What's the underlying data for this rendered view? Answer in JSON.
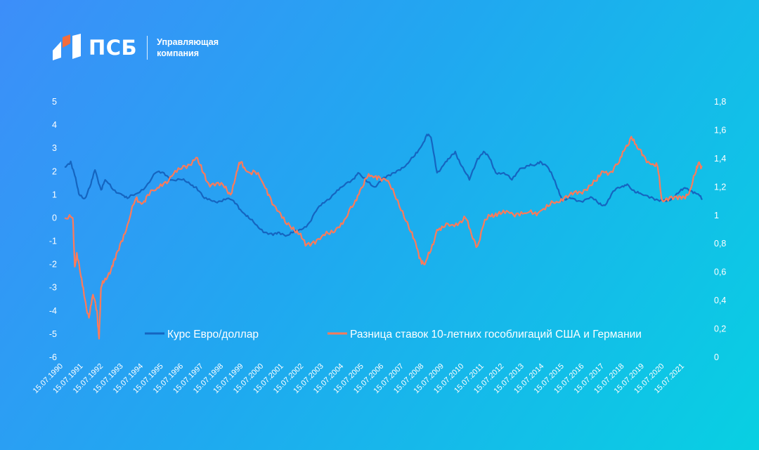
{
  "header": {
    "brand": "ПСБ",
    "caption_line1": "Управляющая",
    "caption_line2": "компания"
  },
  "chart_data": {
    "type": "line",
    "title": "",
    "xlabel": "",
    "ylabel_left": "",
    "ylabel_right": "",
    "x_tick_labels": [
      "15.07.1990",
      "15.07.1991",
      "15.07.1992",
      "15.07.1993",
      "15.07.1994",
      "15.07.1995",
      "15.07.1996",
      "15.07.1997",
      "15.07.1998",
      "15.07.1999",
      "15.07.2000",
      "15.07.2001",
      "15.07.2002",
      "15.07.2003",
      "15.07.2004",
      "15.07.2005",
      "15.07.2006",
      "15.07.2007",
      "15.07.2008",
      "15.07.2009",
      "15.07.2010",
      "15.07.2011",
      "15.07.2012",
      "15.07.2013",
      "15.07.2014",
      "15.07.2015",
      "15.07.2016",
      "15.07.2017",
      "15.07.2018",
      "15.07.2019",
      "15.07.2020",
      "15.07.2021"
    ],
    "y_left": {
      "min": -6,
      "max": 5,
      "ticks": [
        "5",
        "4",
        "3",
        "2",
        "1",
        "0",
        "-1",
        "-2",
        "-3",
        "-4",
        "-5",
        "-6"
      ]
    },
    "y_right": {
      "min": 0,
      "max": 1.8,
      "ticks": [
        "1,8",
        "1,6",
        "1,4",
        "1,2",
        "1",
        "0,8",
        "0,6",
        "0,4",
        "0,2",
        "0"
      ]
    },
    "legend_position": "bottom",
    "series": [
      {
        "name": "Курс Евро/доллар",
        "axis": "right",
        "color": "#1565c0",
        "x": [
          1990.5,
          1990.8,
          1991.0,
          1991.2,
          1991.5,
          1991.8,
          1992.0,
          1992.3,
          1992.5,
          1992.9,
          1993.3,
          1993.6,
          1994.0,
          1994.5,
          1995.0,
          1995.4,
          1995.8,
          1996.3,
          1996.7,
          1997.0,
          1997.4,
          1997.8,
          1998.2,
          1998.6,
          1999.0,
          1999.3,
          1999.6,
          2000.0,
          2000.4,
          2000.8,
          2001.1,
          2001.5,
          2001.8,
          2002.2,
          2002.6,
          2003.0,
          2003.4,
          2003.8,
          2004.2,
          2004.7,
          2005.0,
          2005.4,
          2005.8,
          2006.2,
          2006.6,
          2007.0,
          2007.4,
          2007.8,
          2008.1,
          2008.4,
          2008.6,
          2008.9,
          2009.2,
          2009.5,
          2009.8,
          2010.1,
          2010.5,
          2010.9,
          2011.2,
          2011.5,
          2011.8,
          2012.2,
          2012.6,
          2013.0,
          2013.4,
          2013.7,
          2014.0,
          2014.3,
          2014.6,
          2014.9,
          2015.1,
          2015.5,
          2016.0,
          2016.5,
          2016.9,
          2017.2,
          2017.6,
          2018.0,
          2018.3,
          2018.7,
          2019.0,
          2019.5,
          2019.9,
          2020.2,
          2020.5,
          2020.9,
          2021.2,
          2021.5,
          2021.8,
          2022.0
        ],
        "y": [
          1.34,
          1.38,
          1.28,
          1.15,
          1.12,
          1.22,
          1.32,
          1.18,
          1.25,
          1.18,
          1.15,
          1.12,
          1.15,
          1.2,
          1.3,
          1.3,
          1.25,
          1.25,
          1.22,
          1.2,
          1.12,
          1.1,
          1.1,
          1.12,
          1.08,
          1.02,
          0.98,
          0.93,
          0.88,
          0.86,
          0.88,
          0.86,
          0.88,
          0.9,
          0.95,
          1.05,
          1.1,
          1.15,
          1.2,
          1.25,
          1.3,
          1.24,
          1.2,
          1.26,
          1.28,
          1.32,
          1.36,
          1.42,
          1.48,
          1.57,
          1.55,
          1.3,
          1.35,
          1.4,
          1.45,
          1.35,
          1.25,
          1.4,
          1.45,
          1.4,
          1.3,
          1.3,
          1.25,
          1.33,
          1.35,
          1.35,
          1.38,
          1.35,
          1.28,
          1.18,
          1.1,
          1.12,
          1.1,
          1.13,
          1.08,
          1.07,
          1.17,
          1.2,
          1.22,
          1.16,
          1.15,
          1.13,
          1.1,
          1.1,
          1.12,
          1.17,
          1.19,
          1.17,
          1.15,
          1.11
        ]
      },
      {
        "name": "Разница ставок 10-летних гособлигаций США и Германии",
        "axis": "left",
        "color": "#ff7a59",
        "x": [
          1990.5,
          1990.9,
          1991.0,
          1991.1,
          1991.3,
          1991.5,
          1991.7,
          1991.9,
          1992.1,
          1992.2,
          1992.3,
          1992.5,
          1992.8,
          1993.0,
          1993.3,
          1993.6,
          1994.0,
          1994.3,
          1994.6,
          1995.0,
          1995.4,
          1995.8,
          1996.2,
          1996.6,
          1997.0,
          1997.3,
          1997.6,
          1998.0,
          1998.4,
          1998.7,
          1999.0,
          1999.2,
          1999.5,
          1999.9,
          2000.3,
          2000.6,
          2001.0,
          2001.4,
          2001.8,
          2002.1,
          2002.4,
          2002.8,
          2003.2,
          2003.6,
          2004.0,
          2004.4,
          2004.8,
          2005.1,
          2005.4,
          2005.7,
          2006.0,
          2006.4,
          2006.8,
          2007.2,
          2007.6,
          2007.9,
          2008.1,
          2008.3,
          2008.6,
          2008.9,
          2009.2,
          2009.6,
          2010.0,
          2010.3,
          2010.6,
          2010.9,
          2011.2,
          2011.5,
          2011.8,
          2012.1,
          2012.5,
          2012.9,
          2013.3,
          2013.7,
          2014.0,
          2014.4,
          2014.8,
          2015.2,
          2015.6,
          2016.0,
          2016.4,
          2016.8,
          2017.1,
          2017.5,
          2017.9,
          2018.2,
          2018.5,
          2018.8,
          2019.1,
          2019.5,
          2019.8,
          2020.0,
          2020.4,
          2020.8,
          2021.1,
          2021.4,
          2021.7,
          2021.85,
          2022.0
        ],
        "y": [
          0,
          0,
          -2.1,
          -1.5,
          -2.5,
          -3.5,
          -4.3,
          -3.3,
          -4.0,
          -5.2,
          -3.0,
          -2.6,
          -2.2,
          -1.8,
          -1.0,
          -0.3,
          0.8,
          0.6,
          1.0,
          1.2,
          1.5,
          1.8,
          2.1,
          2.3,
          2.6,
          2.0,
          1.5,
          1.5,
          1.3,
          1.0,
          2.0,
          2.4,
          2.0,
          2.0,
          1.5,
          1.0,
          0.3,
          -0.2,
          -0.4,
          -0.7,
          -1.2,
          -1.0,
          -0.8,
          -0.7,
          -0.4,
          0.0,
          0.6,
          1.2,
          1.7,
          1.8,
          1.8,
          1.6,
          1.0,
          0.3,
          -0.6,
          -1.3,
          -1.8,
          -2.0,
          -1.4,
          -0.5,
          -0.4,
          -0.3,
          -0.2,
          0.0,
          -0.7,
          -1.2,
          -0.3,
          0.1,
          0.2,
          0.2,
          0.2,
          0.2,
          0.2,
          0.2,
          0.3,
          0.5,
          0.7,
          0.9,
          1.0,
          1.1,
          1.4,
          1.6,
          2.0,
          2.0,
          2.4,
          3.0,
          3.5,
          3.0,
          2.7,
          2.3,
          2.2,
          0.8,
          0.9,
          0.8,
          0.9,
          1.2,
          2.0,
          2.4,
          2.2
        ]
      }
    ]
  }
}
